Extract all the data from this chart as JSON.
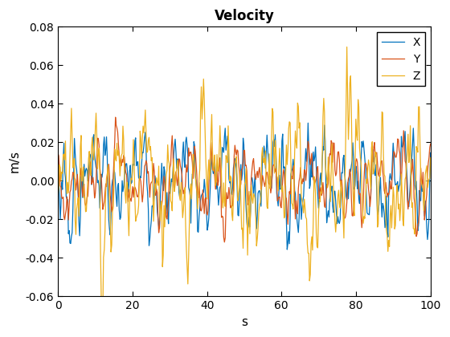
{
  "title": "Velocity",
  "xlabel": "s",
  "ylabel": "m/s",
  "xlim": [
    0,
    100
  ],
  "ylim": [
    -0.06,
    0.08
  ],
  "yticks": [
    -0.06,
    -0.04,
    -0.02,
    0.0,
    0.02,
    0.04,
    0.06,
    0.08
  ],
  "xticks": [
    0,
    20,
    40,
    60,
    80,
    100
  ],
  "legend_labels": [
    "X",
    "Y",
    "Z"
  ],
  "colors": [
    "#0072BD",
    "#D95319",
    "#EDB120"
  ],
  "n_points": 500,
  "t_max": 100,
  "title_fontsize": 12,
  "label_fontsize": 11,
  "tick_fontsize": 10,
  "legend_fontsize": 10,
  "linewidth": 0.9
}
